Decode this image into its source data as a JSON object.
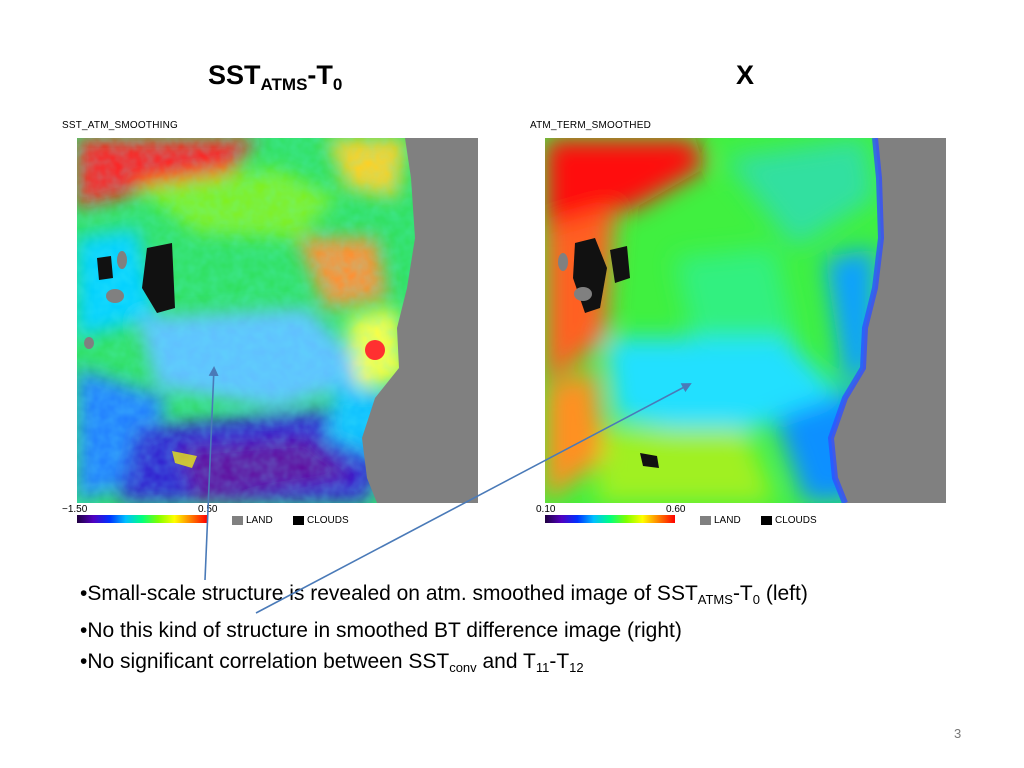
{
  "title_left": {
    "main": "SST",
    "sub": "ATMS",
    "suffix": "-T",
    "suffix_sub": "0"
  },
  "title_right": "X",
  "left_panel": {
    "label": "SST_ATM_SMOOTHING",
    "cbar_min": "−1.50",
    "cbar_max": "0.50",
    "land_label": "LAND",
    "clouds_label": "CLOUDS"
  },
  "right_panel": {
    "label": "ATM_TERM_SMOOTHED",
    "cbar_min": "0.10",
    "cbar_max": "0.60",
    "land_label": "LAND",
    "clouds_label": "CLOUDS"
  },
  "bullets": {
    "b1_pre": "•Small-scale structure is revealed on atm. smoothed image of SST",
    "b1_sub": "ATMS",
    "b1_mid": "-T",
    "b1_sub2": "0",
    "b1_post": " (left)",
    "b2": "•No this kind of structure in smoothed BT difference image (right)",
    "b3_pre": "•No significant correlation between SST",
    "b3_sub": "conv",
    "b3_mid": " and T",
    "b3_sub2": "11",
    "b3_mid2": "-T",
    "b3_sub3": "12"
  },
  "page_number": "3",
  "colors": {
    "land": "#808080",
    "clouds": "#000000",
    "arrow": "#4a7ab8"
  }
}
